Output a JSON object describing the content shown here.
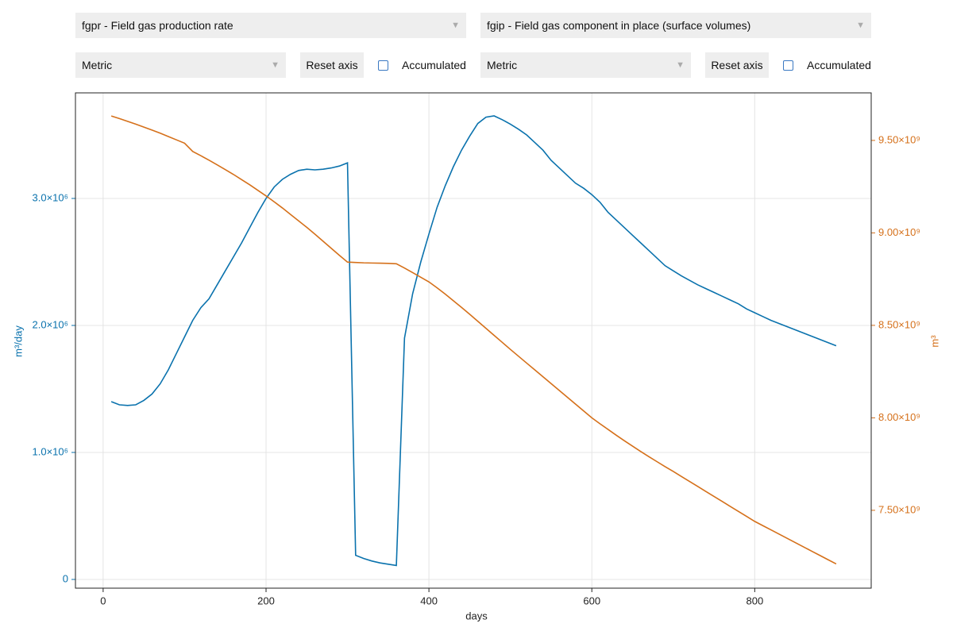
{
  "controls": {
    "left": {
      "variable": "fgpr - Field gas production rate",
      "unit_system": "Metric",
      "reset": "Reset axis",
      "checkbox": "Accumulated"
    },
    "right": {
      "variable": "fgip - Field gas component in place (surface volumes)",
      "unit_system": "Metric",
      "reset": "Reset axis",
      "checkbox": "Accumulated"
    }
  },
  "chart_data": {
    "type": "line",
    "x_label": "days",
    "y_label": "m³/day",
    "y2_label": "m³",
    "x": [
      10,
      20,
      30,
      40,
      50,
      60,
      70,
      80,
      90,
      100,
      110,
      120,
      130,
      140,
      150,
      160,
      170,
      180,
      190,
      200,
      210,
      220,
      230,
      240,
      250,
      260,
      270,
      280,
      290,
      300,
      310,
      320,
      330,
      340,
      350,
      360,
      370,
      380,
      390,
      400,
      410,
      420,
      430,
      440,
      450,
      460,
      470,
      480,
      490,
      500,
      510,
      520,
      530,
      540,
      550,
      560,
      570,
      580,
      590,
      600,
      610,
      620,
      630,
      640,
      650,
      660,
      670,
      680,
      690,
      700,
      710,
      720,
      730,
      740,
      750,
      760,
      770,
      780,
      790,
      800,
      810,
      820,
      830,
      840,
      850,
      860,
      870,
      880,
      890,
      900
    ],
    "series": [
      {
        "color": "#0a72ad",
        "axis": "y",
        "values": [
          1400000.0,
          1375000.0,
          1370000.0,
          1375000.0,
          1410000.0,
          1460000.0,
          1540000.0,
          1650000.0,
          1780000.0,
          1910000.0,
          2040000.0,
          2140000.0,
          2210000.0,
          2320000.0,
          2430000.0,
          2540000.0,
          2650000.0,
          2770000.0,
          2890000.0,
          3000000.0,
          3090000.0,
          3150000.0,
          3190000.0,
          3220000.0,
          3230000.0,
          3225000.0,
          3230000.0,
          3240000.0,
          3255000.0,
          3280000.0,
          190000.0,
          165000.0,
          145000.0,
          130000.0,
          120000.0,
          110000.0,
          1900000.0,
          2250000.0,
          2500000.0,
          2720000.0,
          2930000.0,
          3100000.0,
          3250000.0,
          3380000.0,
          3490000.0,
          3590000.0,
          3640000.0,
          3650000.0,
          3620000.0,
          3585000.0,
          3545000.0,
          3500000.0,
          3440000.0,
          3380000.0,
          3300000.0,
          3240000.0,
          3180000.0,
          3120000.0,
          3080000.0,
          3030000.0,
          2970000.0,
          2890000.0,
          2830000.0,
          2770000.0,
          2710000.0,
          2650000.0,
          2590000.0,
          2530000.0,
          2470000.0,
          2430000.0,
          2390000.0,
          2355000.0,
          2320000.0,
          2290000.0,
          2260000.0,
          2230000.0,
          2200000.0,
          2170000.0,
          2130000.0,
          2100000.0,
          2070000.0,
          2040000.0,
          2015000.0,
          1990000.0,
          1965000.0,
          1940000.0,
          1915000.0,
          1890000.0,
          1865000.0,
          1840000.0
        ]
      },
      {
        "color": "#d5701a",
        "axis": "y2",
        "values": [
          9632000000.0,
          9618000000.0,
          9603000000.0,
          9588000000.0,
          9572000000.0,
          9556000000.0,
          9539000000.0,
          9521000000.0,
          9503000000.0,
          9485000000.0,
          9440000000.0,
          9417000000.0,
          9393000000.0,
          9368000000.0,
          9342000000.0,
          9316000000.0,
          9288000000.0,
          9260000000.0,
          9230000000.0,
          9200000000.0,
          9168000000.0,
          9135000000.0,
          9100000000.0,
          9065000000.0,
          9030000000.0,
          8993000000.0,
          8955000000.0,
          8917000000.0,
          8879000000.0,
          8842000000.0,
          8840000000.0,
          8838000000.0,
          8837000000.0,
          8836000000.0,
          8835000000.0,
          8833000000.0,
          8810000000.0,
          8785000000.0,
          8760000000.0,
          8735000000.0,
          8703000000.0,
          8669000000.0,
          8633000000.0,
          8597000000.0,
          8560000000.0,
          8522000000.0,
          8484000000.0,
          8446000000.0,
          8408000000.0,
          8370000000.0,
          8333000000.0,
          8296000000.0,
          8259000000.0,
          8222000000.0,
          8185000000.0,
          8148000000.0,
          8111000000.0,
          8074000000.0,
          8037000000.0,
          8000000000.0,
          7968000000.0,
          7937000000.0,
          7906000000.0,
          7876000000.0,
          7847000000.0,
          7818000000.0,
          7790000000.0,
          7763000000.0,
          7736000000.0,
          7710000000.0,
          7683000000.0,
          7656000000.0,
          7629000000.0,
          7602000000.0,
          7575000000.0,
          7548000000.0,
          7521000000.0,
          7494000000.0,
          7467000000.0,
          7440000000.0,
          7417000000.0,
          7394000000.0,
          7371000000.0,
          7348000000.0,
          7325000000.0,
          7302000000.0,
          7279000000.0,
          7256000000.0,
          7233000000.0,
          7210000000.0
        ]
      }
    ],
    "xlim": [
      -34,
      943
    ],
    "xticks": [
      0,
      200,
      400,
      600,
      800
    ],
    "ylim": [
      -68750,
      3831250
    ],
    "yticks": [
      0,
      {
        "value": 1000000,
        "label": "1.0×10⁶"
      },
      {
        "value": 2000000,
        "label": "2.0×10⁶"
      },
      {
        "value": 3000000,
        "label": "3.0×10⁶"
      }
    ],
    "y2lim": [
      7079000000.0,
      9757000000.0
    ],
    "y2ticks": [
      {
        "value": 7500000000.0,
        "label": "7.50×10⁹"
      },
      {
        "value": 8000000000.0,
        "label": "8.00×10⁹"
      },
      {
        "value": 8500000000.0,
        "label": "8.50×10⁹"
      },
      {
        "value": 9000000000.0,
        "label": "9.00×10⁹"
      },
      {
        "value": 9500000000.0,
        "label": "9.50×10⁹"
      }
    ],
    "grid": true
  }
}
